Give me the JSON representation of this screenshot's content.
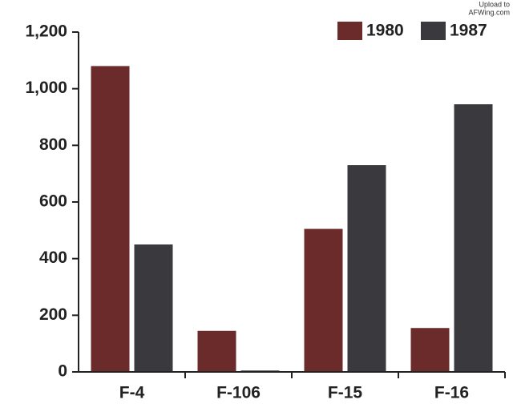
{
  "chart_data": {
    "type": "bar",
    "watermark": [
      "Upload to",
      "AFWing.com"
    ],
    "categories": [
      "F-4",
      "F-106",
      "F-15",
      "F-16"
    ],
    "series": [
      {
        "name": "1980",
        "color": "#6b2b2b",
        "values": [
          1080,
          145,
          505,
          155
        ]
      },
      {
        "name": "1987",
        "color": "#3a3a3e",
        "values": [
          450,
          5,
          730,
          945
        ]
      }
    ],
    "ylim": [
      0,
      1200
    ],
    "yticks": [
      0,
      200,
      400,
      600,
      800,
      {
        "value": 1000,
        "label": "1,000"
      },
      {
        "value": 1200,
        "label": "1,200"
      }
    ],
    "grid": false,
    "legend": "top-right"
  }
}
